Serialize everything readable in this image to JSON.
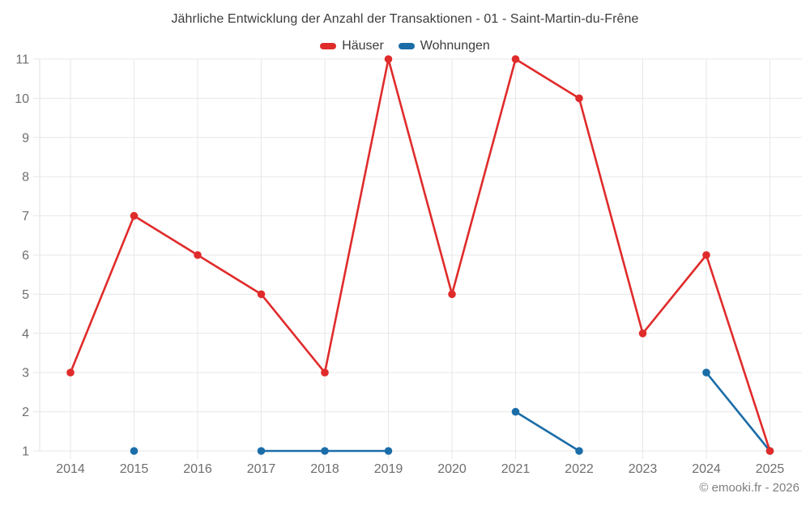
{
  "title": "Jährliche Entwicklung der Anzahl der Transaktionen - 01 - Saint-Martin-du-Frêne",
  "footer": {
    "text": "© emooki.fr - 2026"
  },
  "colors": {
    "haeuser": "#e02b2b",
    "wohnungen": "#1b6da8",
    "grid": "#e7e7e7",
    "axis_line": "#e0e0e0",
    "axis_text": "#6e6e6e",
    "title_text": "#3c3c3c",
    "footer_text": "#7f7f7f"
  },
  "chart_data": {
    "type": "line",
    "title": "Jährliche Entwicklung der Anzahl der Transaktionen - 01 - Saint-Martin-du-Frêne",
    "categories": [
      "2014",
      "2015",
      "2016",
      "2017",
      "2018",
      "2019",
      "2020",
      "2021",
      "2022",
      "2023",
      "2024",
      "2025"
    ],
    "series": [
      {
        "name": "Häuser",
        "color": "#e02b2b",
        "values": [
          3,
          7,
          6,
          5,
          3,
          11,
          5,
          11,
          10,
          4,
          6,
          1
        ]
      },
      {
        "name": "Wohnungen",
        "color": "#1b6da8",
        "values": [
          null,
          1,
          null,
          1,
          1,
          1,
          null,
          2,
          1,
          null,
          3,
          1
        ]
      }
    ],
    "xlabel": "",
    "ylabel": "",
    "ylim": [
      1,
      11
    ],
    "yticks": [
      1,
      2,
      3,
      4,
      5,
      6,
      7,
      8,
      9,
      10,
      11
    ],
    "grid": true,
    "legend_position": "top",
    "gaps_mean_no_data": true,
    "footer": "© emooki.fr - 2026"
  }
}
